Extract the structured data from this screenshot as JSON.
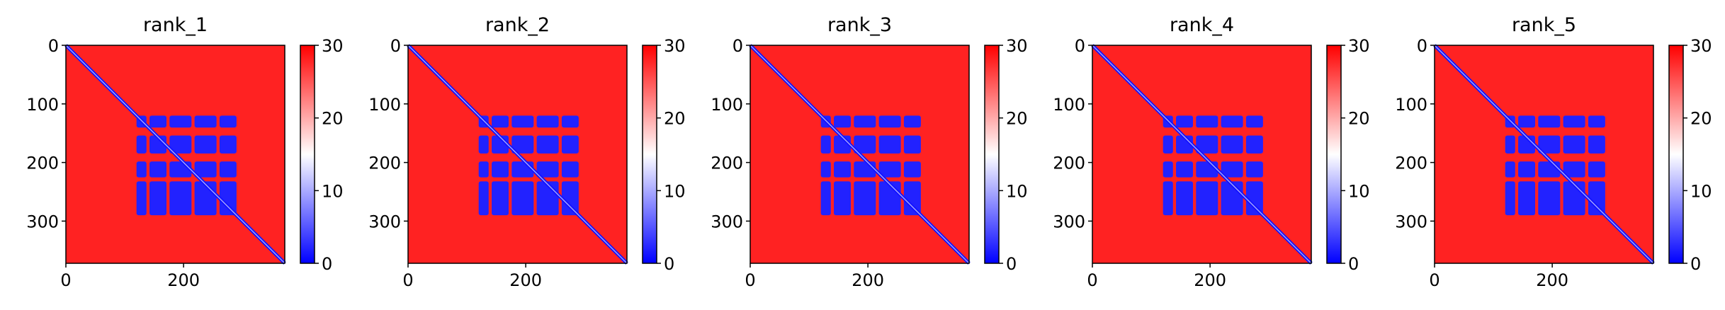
{
  "figure": {
    "panel_count": 5,
    "colormap": "bwr",
    "colors": {
      "low": "#0000ff",
      "mid": "#ffffff",
      "high": "#ff0000",
      "axis": "#000000"
    }
  },
  "chart_data": [
    {
      "type": "heatmap",
      "title": "rank_1",
      "matrix_size": 372,
      "xlim": [
        0,
        372
      ],
      "ylim": [
        0,
        372
      ],
      "xticks": [
        0,
        200
      ],
      "yticks": [
        0,
        100,
        200,
        300
      ],
      "colorbar": {
        "vmin": 0,
        "vmax": 30,
        "ticks": [
          0,
          10,
          20,
          30
        ]
      },
      "regions": [
        {
          "rows": [
            120,
            290
          ],
          "cols": [
            120,
            290
          ],
          "value": 2,
          "description_free": true
        },
        {
          "rows": [
            0,
            372
          ],
          "cols": [
            0,
            372
          ],
          "value": 28
        }
      ],
      "diagonal_value": 1
    },
    {
      "type": "heatmap",
      "title": "rank_2",
      "matrix_size": 372,
      "xlim": [
        0,
        372
      ],
      "ylim": [
        0,
        372
      ],
      "xticks": [
        0,
        200
      ],
      "yticks": [
        0,
        100,
        200,
        300
      ],
      "colorbar": {
        "vmin": 0,
        "vmax": 30,
        "ticks": [
          0,
          10,
          20,
          30
        ]
      },
      "regions": [
        {
          "rows": [
            120,
            290
          ],
          "cols": [
            120,
            290
          ],
          "value": 2
        },
        {
          "rows": [
            0,
            372
          ],
          "cols": [
            0,
            372
          ],
          "value": 28
        }
      ],
      "diagonal_value": 1
    },
    {
      "type": "heatmap",
      "title": "rank_3",
      "matrix_size": 372,
      "xlim": [
        0,
        372
      ],
      "ylim": [
        0,
        372
      ],
      "xticks": [
        0,
        200
      ],
      "yticks": [
        0,
        100,
        200,
        300
      ],
      "colorbar": {
        "vmin": 0,
        "vmax": 30,
        "ticks": [
          0,
          10,
          20,
          30
        ]
      },
      "regions": [
        {
          "rows": [
            120,
            290
          ],
          "cols": [
            120,
            290
          ],
          "value": 2
        },
        {
          "rows": [
            0,
            372
          ],
          "cols": [
            0,
            372
          ],
          "value": 28
        }
      ],
      "diagonal_value": 1
    },
    {
      "type": "heatmap",
      "title": "rank_4",
      "matrix_size": 372,
      "xlim": [
        0,
        372
      ],
      "ylim": [
        0,
        372
      ],
      "xticks": [
        0,
        200
      ],
      "yticks": [
        0,
        100,
        200,
        300
      ],
      "colorbar": {
        "vmin": 0,
        "vmax": 30,
        "ticks": [
          0,
          10,
          20,
          30
        ]
      },
      "regions": [
        {
          "rows": [
            120,
            290
          ],
          "cols": [
            120,
            290
          ],
          "value": 2
        },
        {
          "rows": [
            0,
            372
          ],
          "cols": [
            0,
            372
          ],
          "value": 28
        }
      ],
      "diagonal_value": 1
    },
    {
      "type": "heatmap",
      "title": "rank_5",
      "matrix_size": 372,
      "xlim": [
        0,
        372
      ],
      "ylim": [
        0,
        372
      ],
      "xticks": [
        0,
        200
      ],
      "yticks": [
        0,
        100,
        200,
        300
      ],
      "colorbar": {
        "vmin": 0,
        "vmax": 30,
        "ticks": [
          0,
          10,
          20,
          30
        ]
      },
      "regions": [
        {
          "rows": [
            120,
            290
          ],
          "cols": [
            120,
            290
          ],
          "value": 2
        },
        {
          "rows": [
            0,
            372
          ],
          "cols": [
            0,
            372
          ],
          "value": 28
        }
      ],
      "diagonal_value": 1
    }
  ]
}
